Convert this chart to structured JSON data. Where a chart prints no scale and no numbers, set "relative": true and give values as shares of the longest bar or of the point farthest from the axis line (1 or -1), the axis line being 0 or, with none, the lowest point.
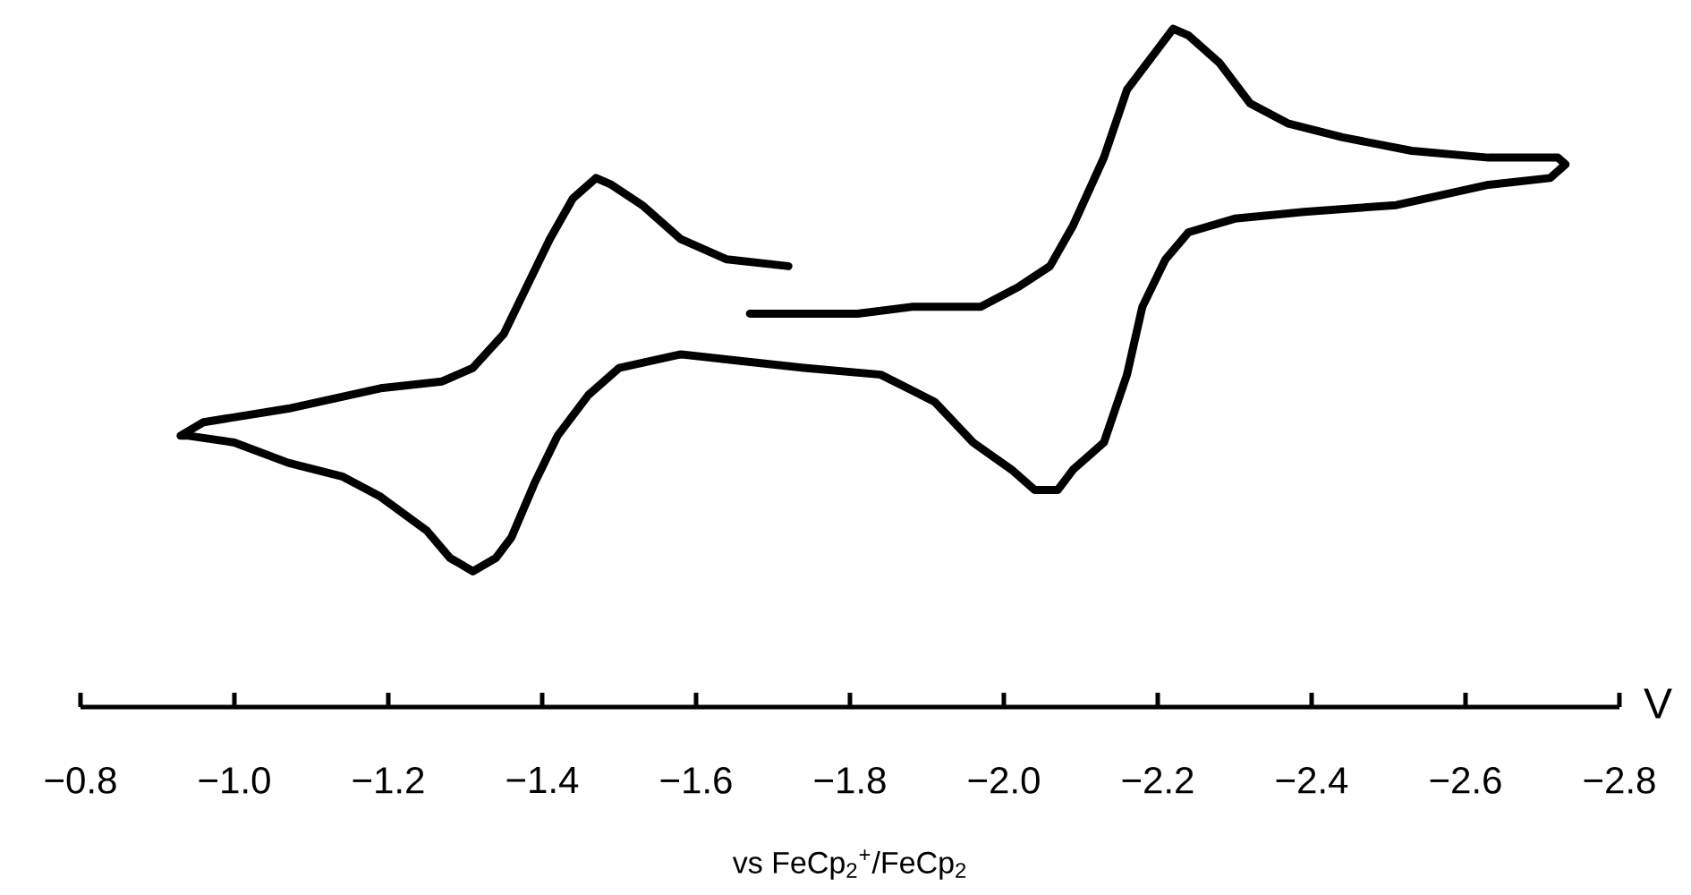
{
  "chart_data": {
    "type": "line",
    "relative": true,
    "color": "#000000",
    "xlabel": "V",
    "annotations": [
      "vs FeCp$_{2}$$^{+}$/FeCp$_{2}$"
    ],
    "xlim": [
      -0.8,
      -2.8
    ],
    "xticks": [
      {
        "value": -0.8,
        "label": "−0.8"
      },
      {
        "value": -1.0,
        "label": "−1.0"
      },
      {
        "value": -1.2,
        "label": "−1.2"
      },
      {
        "value": -1.4,
        "label": "−1.4"
      },
      {
        "value": -1.6,
        "label": "−1.6"
      },
      {
        "value": -1.8,
        "label": "−1.8"
      },
      {
        "value": -2.0,
        "label": "−2.0"
      },
      {
        "value": -2.2,
        "label": "−2.2"
      },
      {
        "value": -2.4,
        "label": "−2.4"
      },
      {
        "value": -2.6,
        "label": "−2.6"
      },
      {
        "value": -2.8,
        "label": "−2.8"
      }
    ],
    "x": [
      -1.67,
      -1.7,
      -1.81,
      -1.88,
      -1.97,
      -2.02,
      -2.06,
      -2.09,
      -2.13,
      -2.16,
      -2.2,
      -2.22,
      -2.24,
      -2.28,
      -2.32,
      -2.37,
      -2.44,
      -2.53,
      -2.63,
      -2.72,
      -2.73,
      -2.71,
      -2.63,
      -2.51,
      -2.39,
      -2.3,
      -2.24,
      -2.21,
      -2.18,
      -2.16,
      -2.13,
      -2.09,
      -2.07,
      -2.04,
      -2.01,
      -1.96,
      -1.91,
      -1.84,
      -1.74,
      -1.66,
      -1.58,
      -1.54,
      -1.5,
      -1.46,
      -1.42,
      -1.39,
      -1.36,
      -1.34,
      -1.31,
      -1.28,
      -1.25,
      -1.19,
      -1.14,
      -1.07,
      -1.0,
      -0.94,
      -0.93,
      -0.96,
      -1.07,
      -1.19,
      -1.27,
      -1.31,
      -1.35,
      -1.38,
      -1.41,
      -1.44,
      -1.47,
      -1.49,
      -1.53,
      -1.58,
      -1.64,
      -1.72
    ],
    "values": [
      0.58,
      0.58,
      0.58,
      0.59,
      0.59,
      0.62,
      0.65,
      0.71,
      0.81,
      0.91,
      0.97,
      1.0,
      0.99,
      0.95,
      0.89,
      0.86,
      0.84,
      0.82,
      0.81,
      0.81,
      0.8,
      0.78,
      0.77,
      0.74,
      0.73,
      0.72,
      0.7,
      0.66,
      0.59,
      0.49,
      0.39,
      0.35,
      0.32,
      0.32,
      0.35,
      0.39,
      0.45,
      0.49,
      0.5,
      0.51,
      0.52,
      0.51,
      0.5,
      0.46,
      0.4,
      0.33,
      0.25,
      0.22,
      0.2,
      0.22,
      0.26,
      0.31,
      0.34,
      0.36,
      0.39,
      0.4,
      0.4,
      0.42,
      0.44,
      0.47,
      0.48,
      0.5,
      0.55,
      0.62,
      0.69,
      0.75,
      0.78,
      0.77,
      0.74,
      0.69,
      0.66,
      0.65
    ]
  }
}
